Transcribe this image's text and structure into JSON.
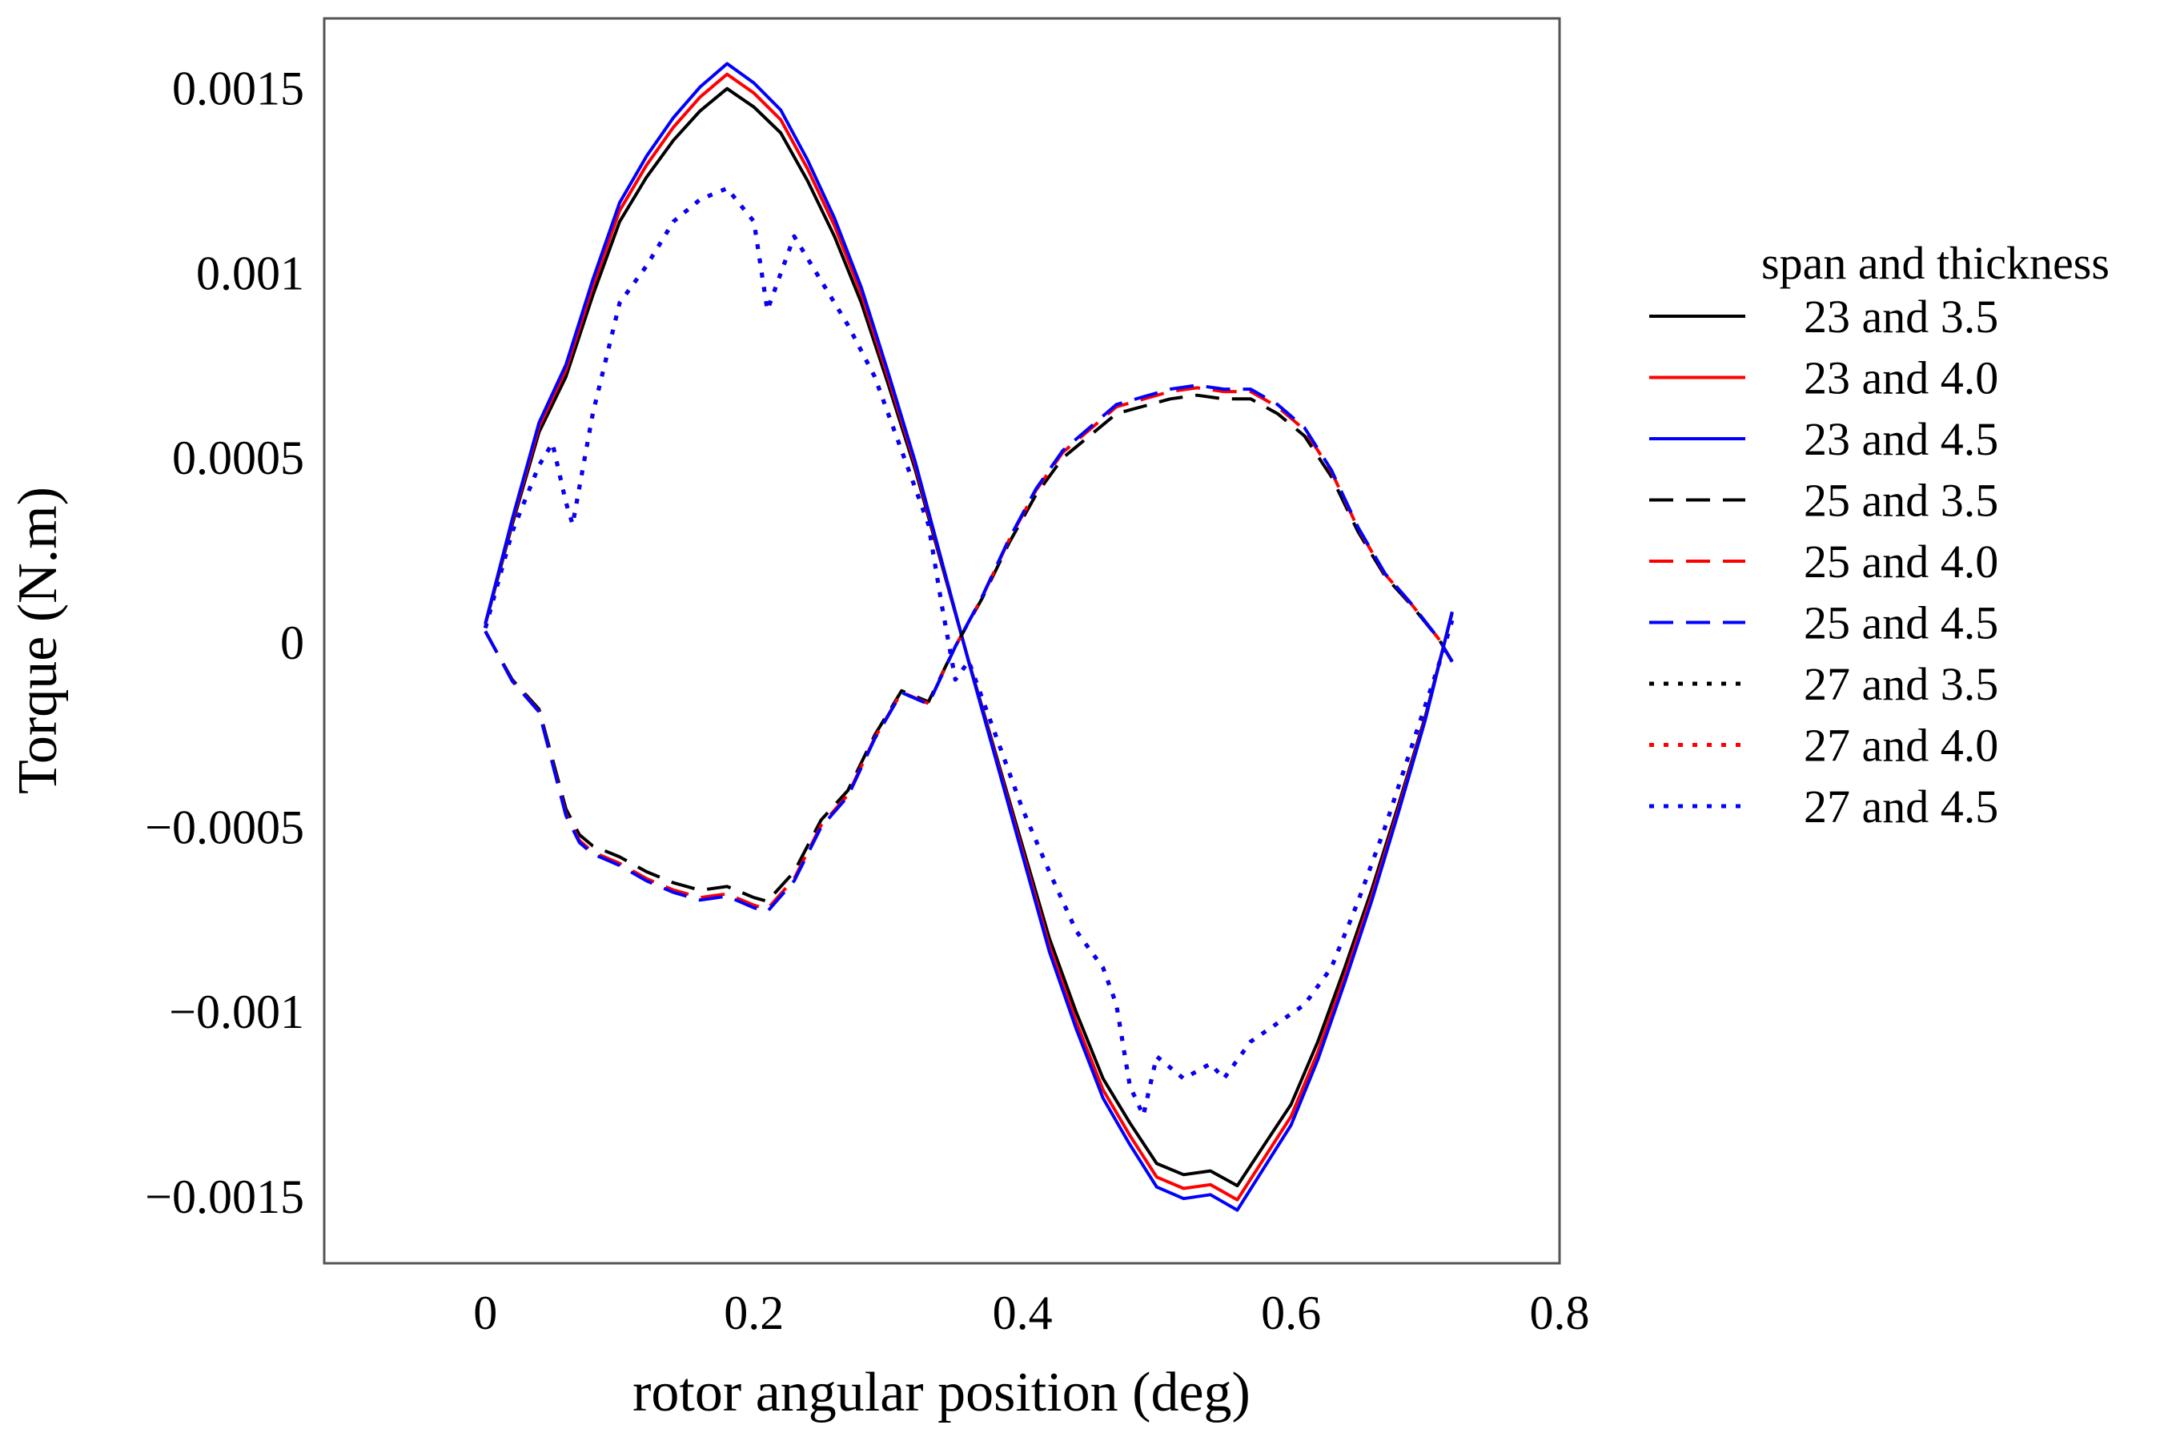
{
  "chart_data": {
    "type": "line",
    "title": "",
    "xlabel": "rotor angular position (deg)",
    "ylabel": "Torque (N.m)",
    "xlim": [
      -0.12,
      0.8
    ],
    "ylim": [
      -0.00168,
      0.00169
    ],
    "xticks": [
      0,
      0.2,
      0.4,
      0.6,
      0.8
    ],
    "xtick_labels": [
      "0",
      "0.2",
      "0.4",
      "0.6",
      "0.8"
    ],
    "yticks": [
      0.0015,
      0.001,
      0.0005,
      0,
      -0.0005,
      -0.001,
      -0.0015
    ],
    "ytick_labels": [
      "0.0015",
      "0.001",
      "0.0005",
      "0",
      "−0.0005",
      "−0.001",
      "−0.0015"
    ],
    "grid": false,
    "legend": {
      "title": "span and thickness",
      "position": "right"
    },
    "groups": {
      "23": {
        "x": [
          0,
          0.02,
          0.04,
          0.06,
          0.08,
          0.1,
          0.12,
          0.14,
          0.16,
          0.18,
          0.2,
          0.22,
          0.24,
          0.26,
          0.28,
          0.3,
          0.32,
          0.34,
          0.36,
          0.38,
          0.4,
          0.42,
          0.44,
          0.46,
          0.48,
          0.5,
          0.52,
          0.54,
          0.56,
          0.58,
          0.6,
          0.62,
          0.64,
          0.66,
          0.68,
          0.7,
          0.72
        ],
        "base": [
          5e-05,
          0.00032,
          0.00057,
          0.00072,
          0.00094,
          0.00114,
          0.00126,
          0.00136,
          0.00144,
          0.0015,
          0.00145,
          0.00138,
          0.00125,
          0.0011,
          0.00092,
          0.0007,
          0.00047,
          0.00021,
          -5e-05,
          -0.0003,
          -0.00055,
          -0.0008,
          -0.001,
          -0.00118,
          -0.0013,
          -0.00141,
          -0.00144,
          -0.00143,
          -0.00147,
          -0.00136,
          -0.00125,
          -0.00108,
          -0.00088,
          -0.00067,
          -0.00044,
          -0.0002,
          8e-05
        ],
        "scale": {
          "3.5": 1.0,
          "4.0": 1.026,
          "4.5": 1.045
        }
      },
      "25": {
        "x": [
          0,
          0.02,
          0.04,
          0.06,
          0.07,
          0.08,
          0.1,
          0.12,
          0.14,
          0.16,
          0.18,
          0.2,
          0.21,
          0.23,
          0.25,
          0.27,
          0.29,
          0.31,
          0.33,
          0.35,
          0.37,
          0.39,
          0.41,
          0.43,
          0.45,
          0.47,
          0.49,
          0.51,
          0.53,
          0.55,
          0.57,
          0.59,
          0.61,
          0.63,
          0.65,
          0.67,
          0.69,
          0.71,
          0.72
        ],
        "base": [
          3e-05,
          -0.0001,
          -0.00018,
          -0.00045,
          -0.00052,
          -0.00055,
          -0.00058,
          -0.00062,
          -0.00065,
          -0.00067,
          -0.00066,
          -0.00069,
          -0.0007,
          -0.00062,
          -0.00048,
          -0.0004,
          -0.00025,
          -0.00013,
          -0.00016,
          -1e-05,
          0.00012,
          0.00027,
          0.0004,
          0.0005,
          0.00056,
          0.00062,
          0.00064,
          0.00066,
          0.00067,
          0.00066,
          0.00066,
          0.00062,
          0.00056,
          0.00045,
          0.0003,
          0.00018,
          0.0001,
          1e-05,
          -5e-05
        ],
        "scale": {
          "3.5": 1.0,
          "4.0": 1.03,
          "4.5": 1.04
        }
      },
      "27": {
        "x": [
          0,
          0.02,
          0.04,
          0.05,
          0.06,
          0.065,
          0.08,
          0.1,
          0.12,
          0.14,
          0.16,
          0.18,
          0.2,
          0.21,
          0.23,
          0.25,
          0.27,
          0.29,
          0.31,
          0.33,
          0.34,
          0.35,
          0.36,
          0.38,
          0.4,
          0.42,
          0.44,
          0.46,
          0.47,
          0.48,
          0.49,
          0.5,
          0.52,
          0.54,
          0.55,
          0.57,
          0.59,
          0.61,
          0.63,
          0.65,
          0.67,
          0.69,
          0.71,
          0.72
        ],
        "base": [
          4e-05,
          0.0003,
          0.00048,
          0.00054,
          0.00038,
          0.00032,
          0.00062,
          0.00092,
          0.00102,
          0.00114,
          0.0012,
          0.00123,
          0.00114,
          0.0009,
          0.0011,
          0.00098,
          0.00086,
          0.00072,
          0.00052,
          0.00032,
          0.0001,
          -0.0001,
          -5e-05,
          -0.00025,
          -0.00045,
          -0.00062,
          -0.00078,
          -0.00088,
          -0.00098,
          -0.0012,
          -0.00128,
          -0.00112,
          -0.00118,
          -0.00114,
          -0.00118,
          -0.00108,
          -0.00103,
          -0.00098,
          -0.00088,
          -0.0007,
          -0.0005,
          -0.00028,
          -6e-05,
          6e-05
        ],
        "scale": {
          "3.5": 1.0,
          "4.0": 1.0,
          "4.5": 1.0
        }
      }
    },
    "series": [
      {
        "name": "23 and 3.5",
        "group": "23",
        "thickness": "3.5",
        "color": "#000000",
        "style": "solid"
      },
      {
        "name": "23 and 4.0",
        "group": "23",
        "thickness": "4.0",
        "color": "#ff0000",
        "style": "solid"
      },
      {
        "name": "23 and 4.5",
        "group": "23",
        "thickness": "4.5",
        "color": "#0000ff",
        "style": "solid"
      },
      {
        "name": "25 and 3.5",
        "group": "25",
        "thickness": "3.5",
        "color": "#000000",
        "style": "dashed"
      },
      {
        "name": "25 and 4.0",
        "group": "25",
        "thickness": "4.0",
        "color": "#ff0000",
        "style": "dashed"
      },
      {
        "name": "25 and 4.5",
        "group": "25",
        "thickness": "4.5",
        "color": "#0000ff",
        "style": "dashed"
      },
      {
        "name": "27 and 3.5",
        "group": "27",
        "thickness": "3.5",
        "color": "#000000",
        "style": "dotted"
      },
      {
        "name": "27 and 4.0",
        "group": "27",
        "thickness": "4.0",
        "color": "#ff0000",
        "style": "dotted"
      },
      {
        "name": "27 and 4.5",
        "group": "27",
        "thickness": "4.5",
        "color": "#0000ff",
        "style": "dotted"
      }
    ]
  }
}
